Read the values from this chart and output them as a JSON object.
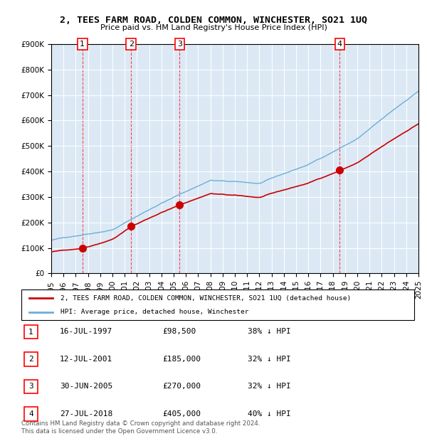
{
  "title": "2, TEES FARM ROAD, COLDEN COMMON, WINCHESTER, SO21 1UQ",
  "subtitle": "Price paid vs. HM Land Registry's House Price Index (HPI)",
  "background_color": "#dce9f5",
  "plot_bg_color": "#dce9f5",
  "ylim": [
    0,
    900000
  ],
  "yticks": [
    0,
    100000,
    200000,
    300000,
    400000,
    500000,
    600000,
    700000,
    800000,
    900000
  ],
  "ylabel_format": "£{0}K",
  "transactions": [
    {
      "num": 1,
      "date": "1997-07-16",
      "date_label": "16-JUL-1997",
      "price": 98500,
      "pct": "38% ↓ HPI",
      "year_x": 1997.54
    },
    {
      "num": 2,
      "date": "2001-07-12",
      "date_label": "12-JUL-2001",
      "price": 185000,
      "pct": "32% ↓ HPI",
      "year_x": 2001.53
    },
    {
      "num": 3,
      "date": "2005-06-30",
      "date_label": "30-JUN-2005",
      "price": 270000,
      "pct": "32% ↓ HPI",
      "year_x": 2005.49
    },
    {
      "num": 4,
      "date": "2018-07-27",
      "date_label": "27-JUL-2018",
      "price": 405000,
      "pct": "40% ↓ HPI",
      "year_x": 2018.57
    }
  ],
  "hpi_label": "HPI: Average price, detached house, Winchester",
  "property_label": "2, TEES FARM ROAD, COLDEN COMMON, WINCHESTER, SO21 1UQ (detached house)",
  "hpi_color": "#6baed6",
  "property_color": "#cc0000",
  "footer": "Contains HM Land Registry data © Crown copyright and database right 2024.\nThis data is licensed under the Open Government Licence v3.0.",
  "xmin": 1995,
  "xmax": 2025
}
